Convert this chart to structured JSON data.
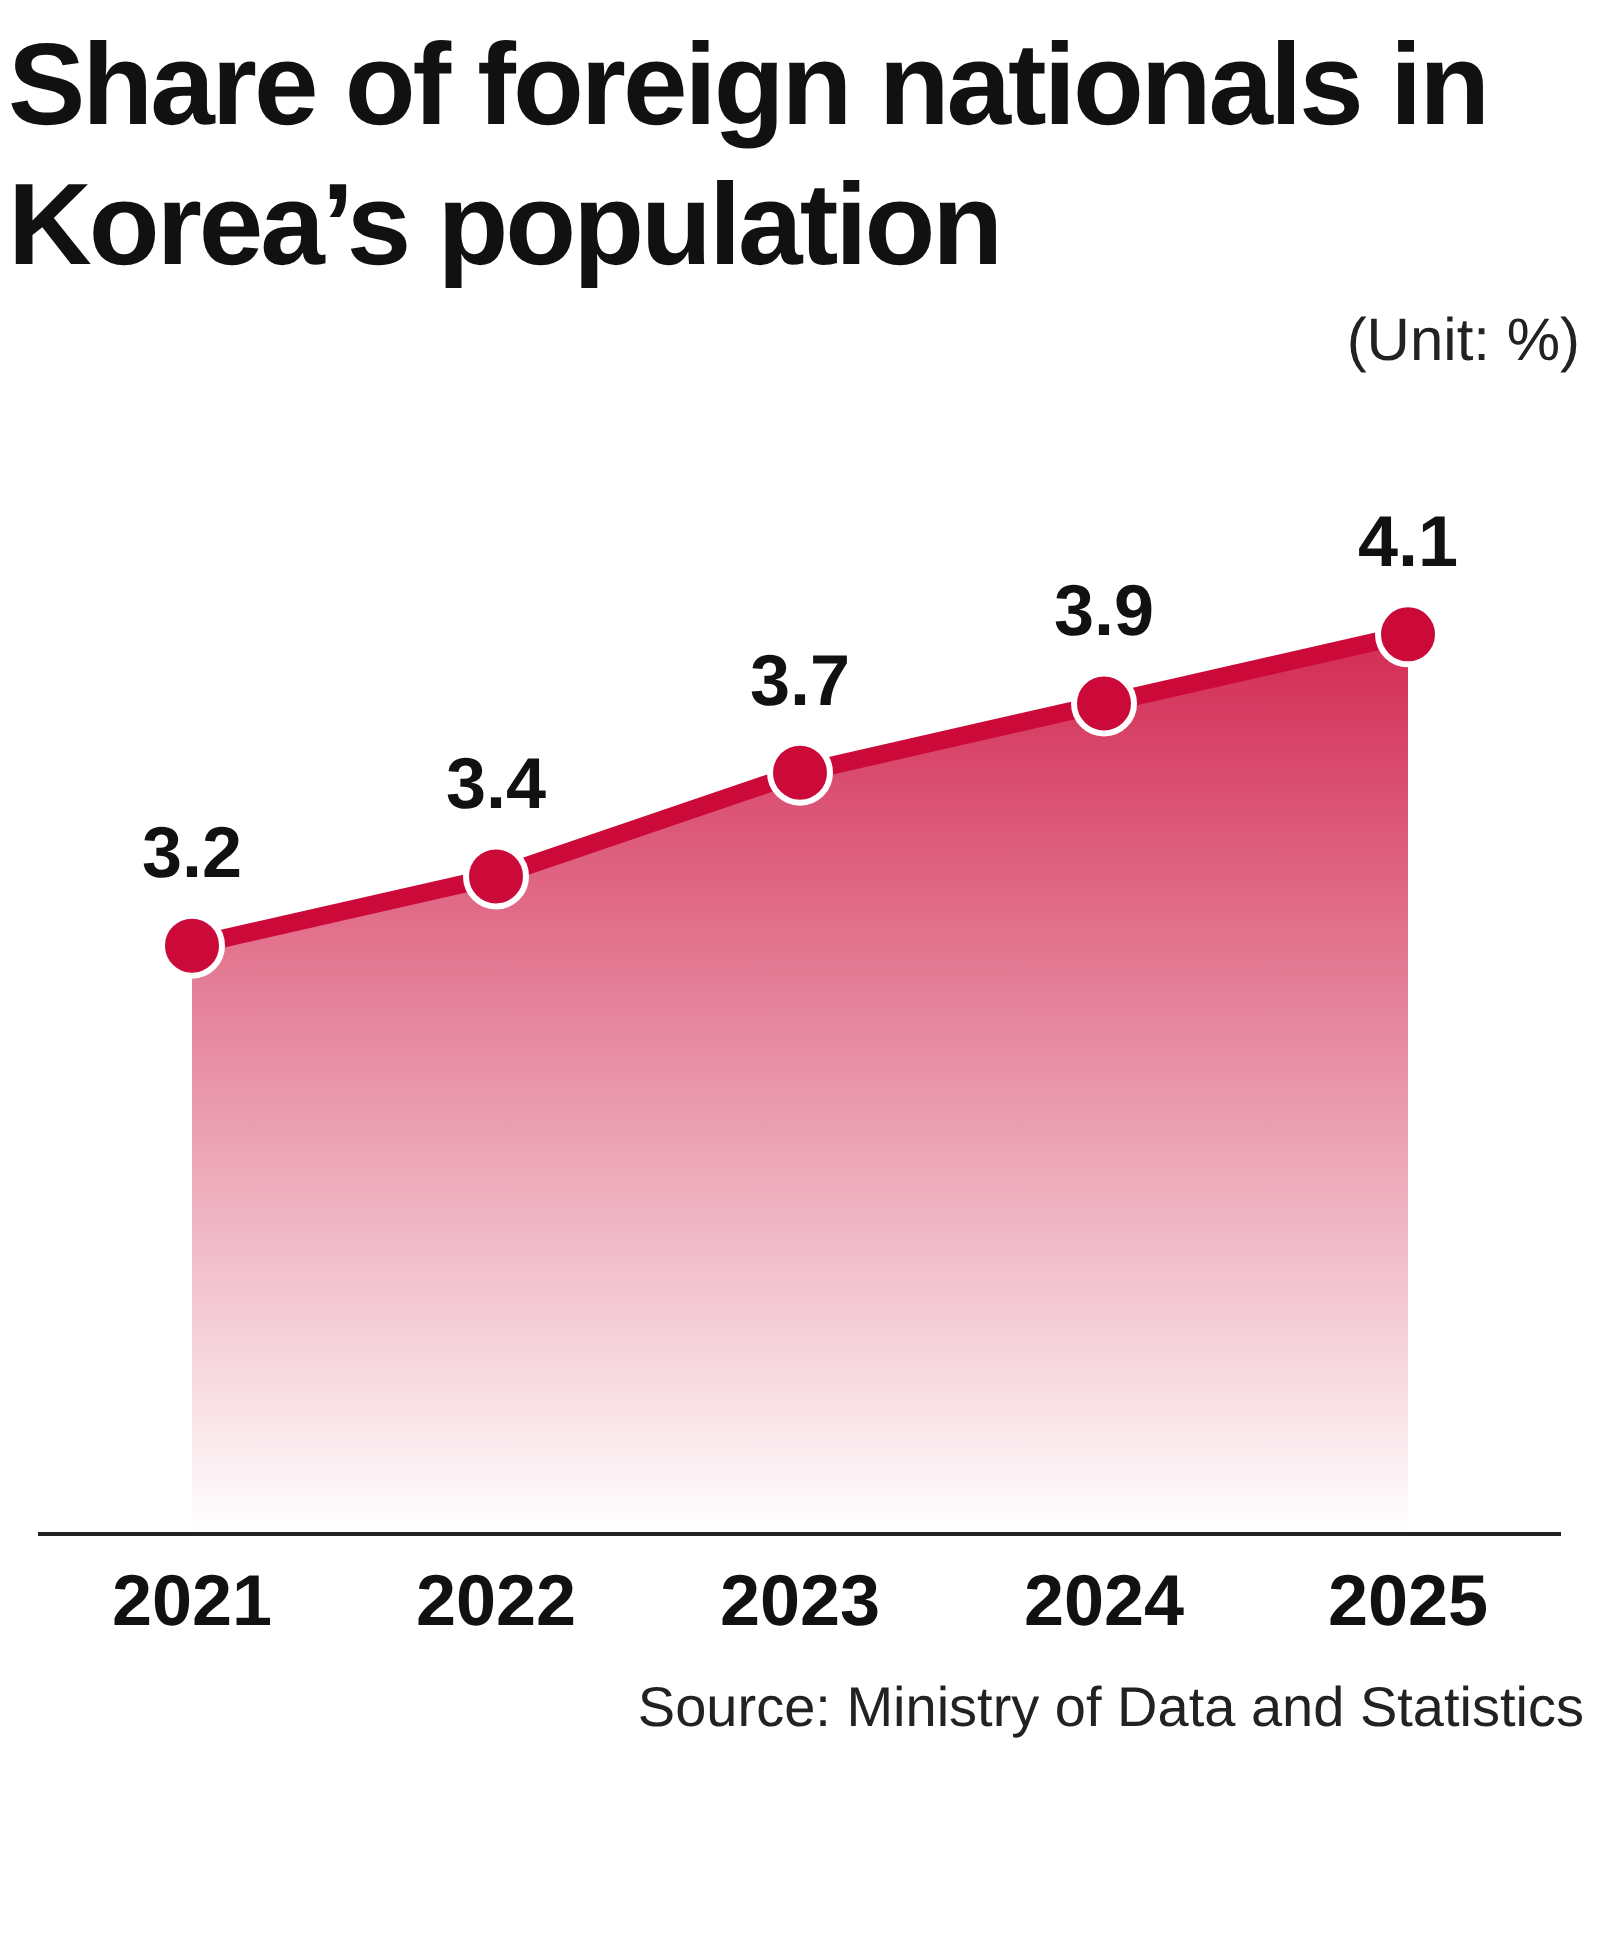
{
  "chart_data": {
    "type": "area",
    "title": "Share of foreign nationals in Korea’s population",
    "subtitle": "(Unit: %)",
    "categories": [
      "2021",
      "2022",
      "2023",
      "2024",
      "2025"
    ],
    "values": [
      3.2,
      3.4,
      3.7,
      3.9,
      4.1
    ],
    "color": "#cc0a3a",
    "tick_labels": "x",
    "data_labels": true,
    "marker": "circle",
    "grid": false,
    "legend": false,
    "annotations": [
      "Source: Ministry of Data and Statistics"
    ]
  }
}
